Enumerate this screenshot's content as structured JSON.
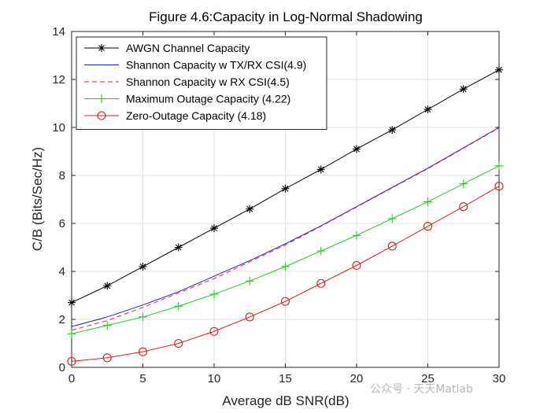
{
  "chart_data": {
    "type": "line",
    "title": "Figure 4.6:Capacity in Log-Normal Shadowing",
    "xlabel": "Average dB SNR(dB)",
    "ylabel": "C/B (Bits/Sec/Hz)",
    "xlim": [
      0,
      30
    ],
    "ylim": [
      0,
      14
    ],
    "xticks": [
      0,
      5,
      10,
      15,
      20,
      25,
      30
    ],
    "yticks": [
      0,
      2,
      4,
      6,
      8,
      10,
      12,
      14
    ],
    "grid": true,
    "legend_position": "top-left",
    "x": [
      0,
      2.5,
      5,
      7.5,
      10,
      12.5,
      15,
      17.5,
      20,
      22.5,
      25,
      27.5,
      30
    ],
    "series": [
      {
        "name": "AWGN Channel Capacity",
        "color": "#000000",
        "line": "solid",
        "marker": "asterisk",
        "values": [
          2.7,
          3.4,
          4.2,
          5.0,
          5.8,
          6.6,
          7.45,
          8.25,
          9.1,
          9.9,
          10.75,
          11.6,
          12.4
        ]
      },
      {
        "name": "Shannon Capacity w TX/RX CSI(4.9)",
        "color": "#2020c0",
        "line": "solid",
        "marker": "none",
        "values": [
          1.7,
          2.1,
          2.6,
          3.15,
          3.8,
          4.45,
          5.15,
          5.9,
          6.7,
          7.5,
          8.3,
          9.15,
          10.0
        ]
      },
      {
        "name": "Shannon Capacity w RX CSI(4.5)",
        "color": "#d03030",
        "line": "dashed",
        "marker": "none",
        "values": [
          1.55,
          1.95,
          2.5,
          3.1,
          3.7,
          4.4,
          5.1,
          5.88,
          6.68,
          7.48,
          8.28,
          9.13,
          9.98
        ]
      },
      {
        "name": "Maximum Outage Capacity (4.22)",
        "color": "#22cc22",
        "line": "solid",
        "marker": "plus",
        "values": [
          1.4,
          1.75,
          2.1,
          2.55,
          3.05,
          3.6,
          4.2,
          4.85,
          5.5,
          6.2,
          6.9,
          7.65,
          8.4
        ]
      },
      {
        "name": "Zero-Outage Capacity (4.18)",
        "color": "#d42020",
        "line": "solid",
        "marker": "circle",
        "values": [
          0.25,
          0.4,
          0.65,
          1.0,
          1.5,
          2.1,
          2.75,
          3.5,
          4.25,
          5.05,
          5.88,
          6.7,
          7.55
        ]
      }
    ]
  },
  "watermark": "公众号 · 天天Matlab"
}
